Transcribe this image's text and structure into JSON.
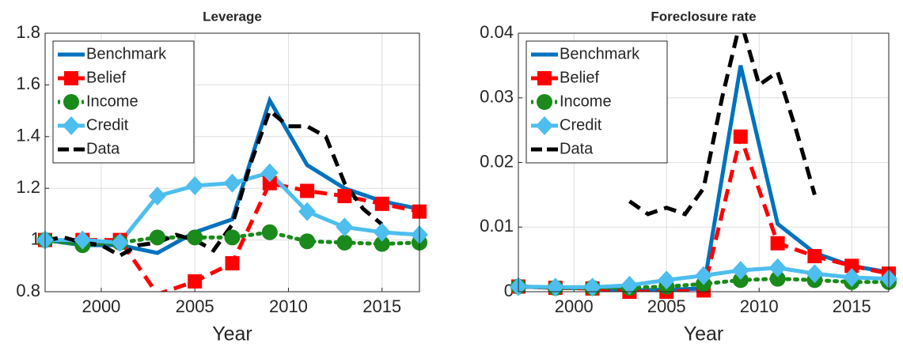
{
  "chart_data": [
    {
      "type": "line",
      "title": "Leverage",
      "xlabel": "Year",
      "x": [
        1997,
        1999,
        2001,
        2003,
        2005,
        2007,
        2009,
        2011,
        2013,
        2015,
        2017
      ],
      "xlim": [
        1997,
        2017
      ],
      "xticks": [
        2000,
        2005,
        2010,
        2015
      ],
      "ylim": [
        0.8,
        1.8
      ],
      "yticks": [
        0.8,
        1,
        1.2,
        1.4,
        1.6,
        1.8
      ],
      "grid": true,
      "legend": "top-left",
      "series": [
        {
          "name": "Benchmark",
          "color": "#0072bd",
          "dash": "solid",
          "marker": "none",
          "values": [
            1.0,
            0.98,
            0.98,
            0.95,
            1.03,
            1.08,
            1.54,
            1.29,
            1.2,
            1.15,
            1.12
          ]
        },
        {
          "name": "Belief",
          "color": "#ff0000",
          "dash": "dashed",
          "marker": "square",
          "values": [
            1.0,
            1.0,
            1.0,
            0.79,
            0.84,
            0.91,
            1.22,
            1.19,
            1.17,
            1.14,
            1.11
          ]
        },
        {
          "name": "Income",
          "color": "#1a8a1a",
          "dash": "dotted",
          "marker": "circle",
          "values": [
            1.0,
            0.98,
            0.99,
            1.01,
            1.01,
            1.01,
            1.03,
            0.995,
            0.99,
            0.985,
            0.99
          ]
        },
        {
          "name": "Credit",
          "color": "#4dbeee",
          "dash": "solid",
          "marker": "diamond",
          "values": [
            1.0,
            1.0,
            0.99,
            1.17,
            1.21,
            1.22,
            1.26,
            1.11,
            1.05,
            1.03,
            1.02
          ]
        },
        {
          "name": "Data",
          "color": "#000000",
          "dash": "dashed",
          "marker": "none",
          "x": [
            1997,
            1998,
            1999,
            2000,
            2001,
            2002,
            2003,
            2004,
            2005,
            2006,
            2007,
            2008,
            2009,
            2010,
            2011,
            2012,
            2013,
            2014,
            2015
          ],
          "values": [
            1.0,
            1.01,
            0.99,
            0.98,
            0.94,
            0.98,
            0.99,
            1.02,
            1.0,
            0.96,
            1.06,
            1.3,
            1.5,
            1.44,
            1.44,
            1.4,
            1.22,
            1.12,
            1.06
          ]
        }
      ]
    },
    {
      "type": "line",
      "title": "Foreclosure rate",
      "xlabel": "Year",
      "x": [
        1997,
        1999,
        2001,
        2003,
        2005,
        2007,
        2009,
        2011,
        2013,
        2015,
        2017
      ],
      "xlim": [
        1997,
        2017
      ],
      "xticks": [
        2000,
        2005,
        2010,
        2015
      ],
      "ylim": [
        0,
        0.04
      ],
      "yticks": [
        0,
        0.01,
        0.02,
        0.03,
        0.04
      ],
      "grid": true,
      "legend": "top-left",
      "series": [
        {
          "name": "Benchmark",
          "color": "#0072bd",
          "dash": "solid",
          "marker": "none",
          "values": [
            0.0008,
            0.0006,
            0.0005,
            0.0002,
            0.0003,
            0.0005,
            0.035,
            0.0105,
            0.006,
            0.004,
            0.003
          ]
        },
        {
          "name": "Belief",
          "color": "#ff0000",
          "dash": "dashed",
          "marker": "square",
          "values": [
            0.0008,
            0.0006,
            0.0005,
            0.0,
            0.0,
            0.0002,
            0.024,
            0.0075,
            0.0055,
            0.004,
            0.0028
          ]
        },
        {
          "name": "Income",
          "color": "#1a8a1a",
          "dash": "dotted",
          "marker": "circle",
          "values": [
            0.0008,
            0.0006,
            0.0006,
            0.0006,
            0.0008,
            0.0012,
            0.0018,
            0.002,
            0.0018,
            0.0015,
            0.0015
          ]
        },
        {
          "name": "Credit",
          "color": "#4dbeee",
          "dash": "solid",
          "marker": "diamond",
          "values": [
            0.0008,
            0.0007,
            0.0007,
            0.001,
            0.0018,
            0.0025,
            0.0033,
            0.0037,
            0.0028,
            0.0022,
            0.002
          ]
        },
        {
          "name": "Data",
          "color": "#000000",
          "dash": "dashed",
          "marker": "none",
          "x": [
            2003,
            2004,
            2005,
            2006,
            2007,
            2008,
            2009,
            2010,
            2011,
            2012,
            2013
          ],
          "values": [
            0.014,
            0.012,
            0.013,
            0.012,
            0.016,
            0.03,
            0.042,
            0.032,
            0.034,
            0.025,
            0.015
          ]
        }
      ]
    }
  ]
}
